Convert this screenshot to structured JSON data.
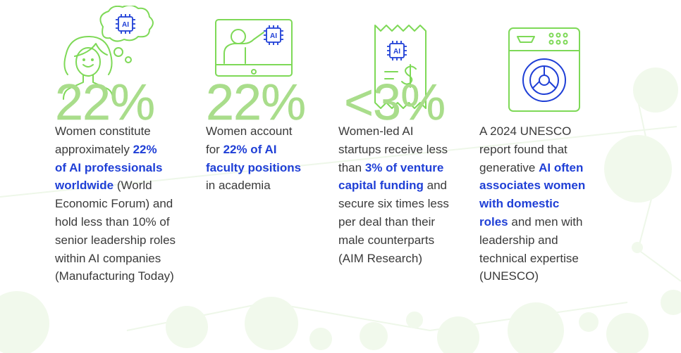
{
  "colors": {
    "accent_green": "#7ed957",
    "stat_green": "#a9dd8b",
    "highlight_blue": "#1f3fd6",
    "body_text": "#3a3a3a"
  },
  "columns": [
    {
      "icon": "woman-thinking-ai-icon",
      "stat": "22%",
      "lines": [
        [
          {
            "t": "Women constitute"
          }
        ],
        [
          {
            "t": "approximately "
          },
          {
            "t": "22%",
            "h": true
          }
        ],
        [
          {
            "t": "of AI professionals",
            "h": true
          }
        ],
        [
          {
            "t": "worldwide",
            "h": true
          },
          {
            "t": " (World"
          }
        ],
        [
          {
            "t": "Economic Forum) and"
          }
        ],
        [
          {
            "t": "hold less than 10% of"
          }
        ],
        [
          {
            "t": "senior leadership roles"
          }
        ],
        [
          {
            "t": "within AI companies"
          }
        ],
        [
          {
            "t": "(Manufacturing Today)"
          }
        ]
      ]
    },
    {
      "icon": "teacher-screen-ai-icon",
      "stat": "22%",
      "lines": [
        [
          {
            "t": "Women account"
          }
        ],
        [
          {
            "t": "for "
          },
          {
            "t": "22% of AI",
            "h": true
          }
        ],
        [
          {
            "t": "faculty positions",
            "h": true
          }
        ],
        [
          {
            "t": "in academia"
          }
        ]
      ]
    },
    {
      "icon": "receipt-ai-dollar-icon",
      "stat": "<3%",
      "lines": [
        [
          {
            "t": "Women-led AI"
          }
        ],
        [
          {
            "t": "startups receive less"
          }
        ],
        [
          {
            "t": "than "
          },
          {
            "t": "3% of venture",
            "h": true
          }
        ],
        [
          {
            "t": "capital funding",
            "h": true
          },
          {
            "t": " and"
          }
        ],
        [
          {
            "t": "secure six times less"
          }
        ],
        [
          {
            "t": "per deal than their"
          }
        ],
        [
          {
            "t": "male counterparts"
          }
        ],
        [
          {
            "t": "(AIM Research)"
          }
        ]
      ]
    },
    {
      "icon": "washing-machine-icon",
      "stat": "",
      "lines": [
        [
          {
            "t": "A 2024 UNESCO"
          }
        ],
        [
          {
            "t": "report found that"
          }
        ],
        [
          {
            "t": "generative "
          },
          {
            "t": "AI often",
            "h": true
          }
        ],
        [
          {
            "t": "associates women",
            "h": true
          }
        ],
        [
          {
            "t": "with domestic",
            "h": true
          }
        ],
        [
          {
            "t": "roles",
            "h": true
          },
          {
            "t": " and men with"
          }
        ],
        [
          {
            "t": "leadership and"
          }
        ],
        [
          {
            "t": "technical expertise"
          }
        ],
        [
          {
            "t": "(UNESCO)"
          }
        ]
      ]
    }
  ]
}
